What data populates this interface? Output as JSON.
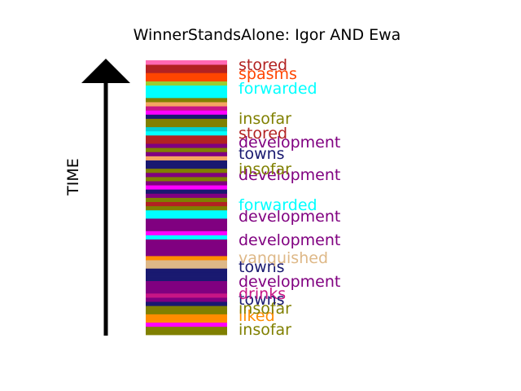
{
  "chart_data": {
    "type": "bar",
    "title": "WinnerStandsAlone: Igor AND Ewa",
    "ylabel": "TIME",
    "direction": "time increases upward",
    "stripes": [
      {
        "color": "#808000"
      },
      {
        "color": "#808000"
      },
      {
        "color": "#ff00ff"
      },
      {
        "color": "#ff8c00"
      },
      {
        "color": "#ff8c00"
      },
      {
        "color": "#808000"
      },
      {
        "color": "#808000"
      },
      {
        "color": "#191970"
      },
      {
        "color": "#800080"
      },
      {
        "color": "#c71585"
      },
      {
        "color": "#800080"
      },
      {
        "color": "#800080"
      },
      {
        "color": "#800080"
      },
      {
        "color": "#191970"
      },
      {
        "color": "#191970"
      },
      {
        "color": "#191970"
      },
      {
        "color": "#deb887"
      },
      {
        "color": "#deb887"
      },
      {
        "color": "#ff8c00"
      },
      {
        "color": "#800080"
      },
      {
        "color": "#800080"
      },
      {
        "color": "#800080"
      },
      {
        "color": "#800080"
      },
      {
        "color": "#00ffff"
      },
      {
        "color": "#ff00ff"
      },
      {
        "color": "#800080"
      },
      {
        "color": "#800080"
      },
      {
        "color": "#800080"
      },
      {
        "color": "#00ffff"
      },
      {
        "color": "#00ffff"
      },
      {
        "color": "#808000"
      },
      {
        "color": "#b22222"
      },
      {
        "color": "#808000"
      },
      {
        "color": "#800080"
      },
      {
        "color": "#191970"
      },
      {
        "color": "#ff00ff"
      },
      {
        "color": "#800080"
      },
      {
        "color": "#808000"
      },
      {
        "color": "#800080"
      },
      {
        "color": "#808000"
      },
      {
        "color": "#191970"
      },
      {
        "color": "#191970"
      },
      {
        "color": "#f4a460"
      },
      {
        "color": "#800080"
      },
      {
        "color": "#808000"
      },
      {
        "color": "#800080"
      },
      {
        "color": "#b22222"
      },
      {
        "color": "#b22222"
      },
      {
        "color": "#00ffff"
      },
      {
        "color": "#00ced1"
      },
      {
        "color": "#808000"
      },
      {
        "color": "#808000"
      },
      {
        "color": "#191970"
      },
      {
        "color": "#ff00ff"
      },
      {
        "color": "#c71585"
      },
      {
        "color": "#f4a460"
      },
      {
        "color": "#808000"
      },
      {
        "color": "#00ffff"
      },
      {
        "color": "#00ffff"
      },
      {
        "color": "#00ffff"
      },
      {
        "color": "#9acd32"
      },
      {
        "color": "#ff4500"
      },
      {
        "color": "#ff4500"
      },
      {
        "color": "#b22222"
      },
      {
        "color": "#b22222"
      },
      {
        "color": "#ff69b4"
      }
    ],
    "labels": [
      {
        "text": "insofar",
        "color": "#808000"
      },
      {
        "text": "liked",
        "color": "#ff8c00"
      },
      {
        "text": "insofar",
        "color": "#808000"
      },
      {
        "text": "towns",
        "color": "#191970"
      },
      {
        "text": "drinks",
        "color": "#c71585"
      },
      {
        "text": "development",
        "color": "#800080"
      },
      {
        "text": "towns",
        "color": "#191970"
      },
      {
        "text": "vanquished",
        "color": "#deb887"
      },
      {
        "text": "development",
        "color": "#800080"
      },
      {
        "text": "development",
        "color": "#800080"
      },
      {
        "text": "forwarded",
        "color": "#00ffff"
      },
      {
        "text": "development",
        "color": "#800080"
      },
      {
        "text": "insofar",
        "color": "#808000"
      },
      {
        "text": "towns",
        "color": "#191970"
      },
      {
        "text": "development",
        "color": "#800080"
      },
      {
        "text": "stored",
        "color": "#b22222"
      },
      {
        "text": "insofar",
        "color": "#808000"
      },
      {
        "text": "forwarded",
        "color": "#00ffff"
      },
      {
        "text": "spasms",
        "color": "#ff4500"
      },
      {
        "text": "stored",
        "color": "#b22222"
      }
    ]
  }
}
